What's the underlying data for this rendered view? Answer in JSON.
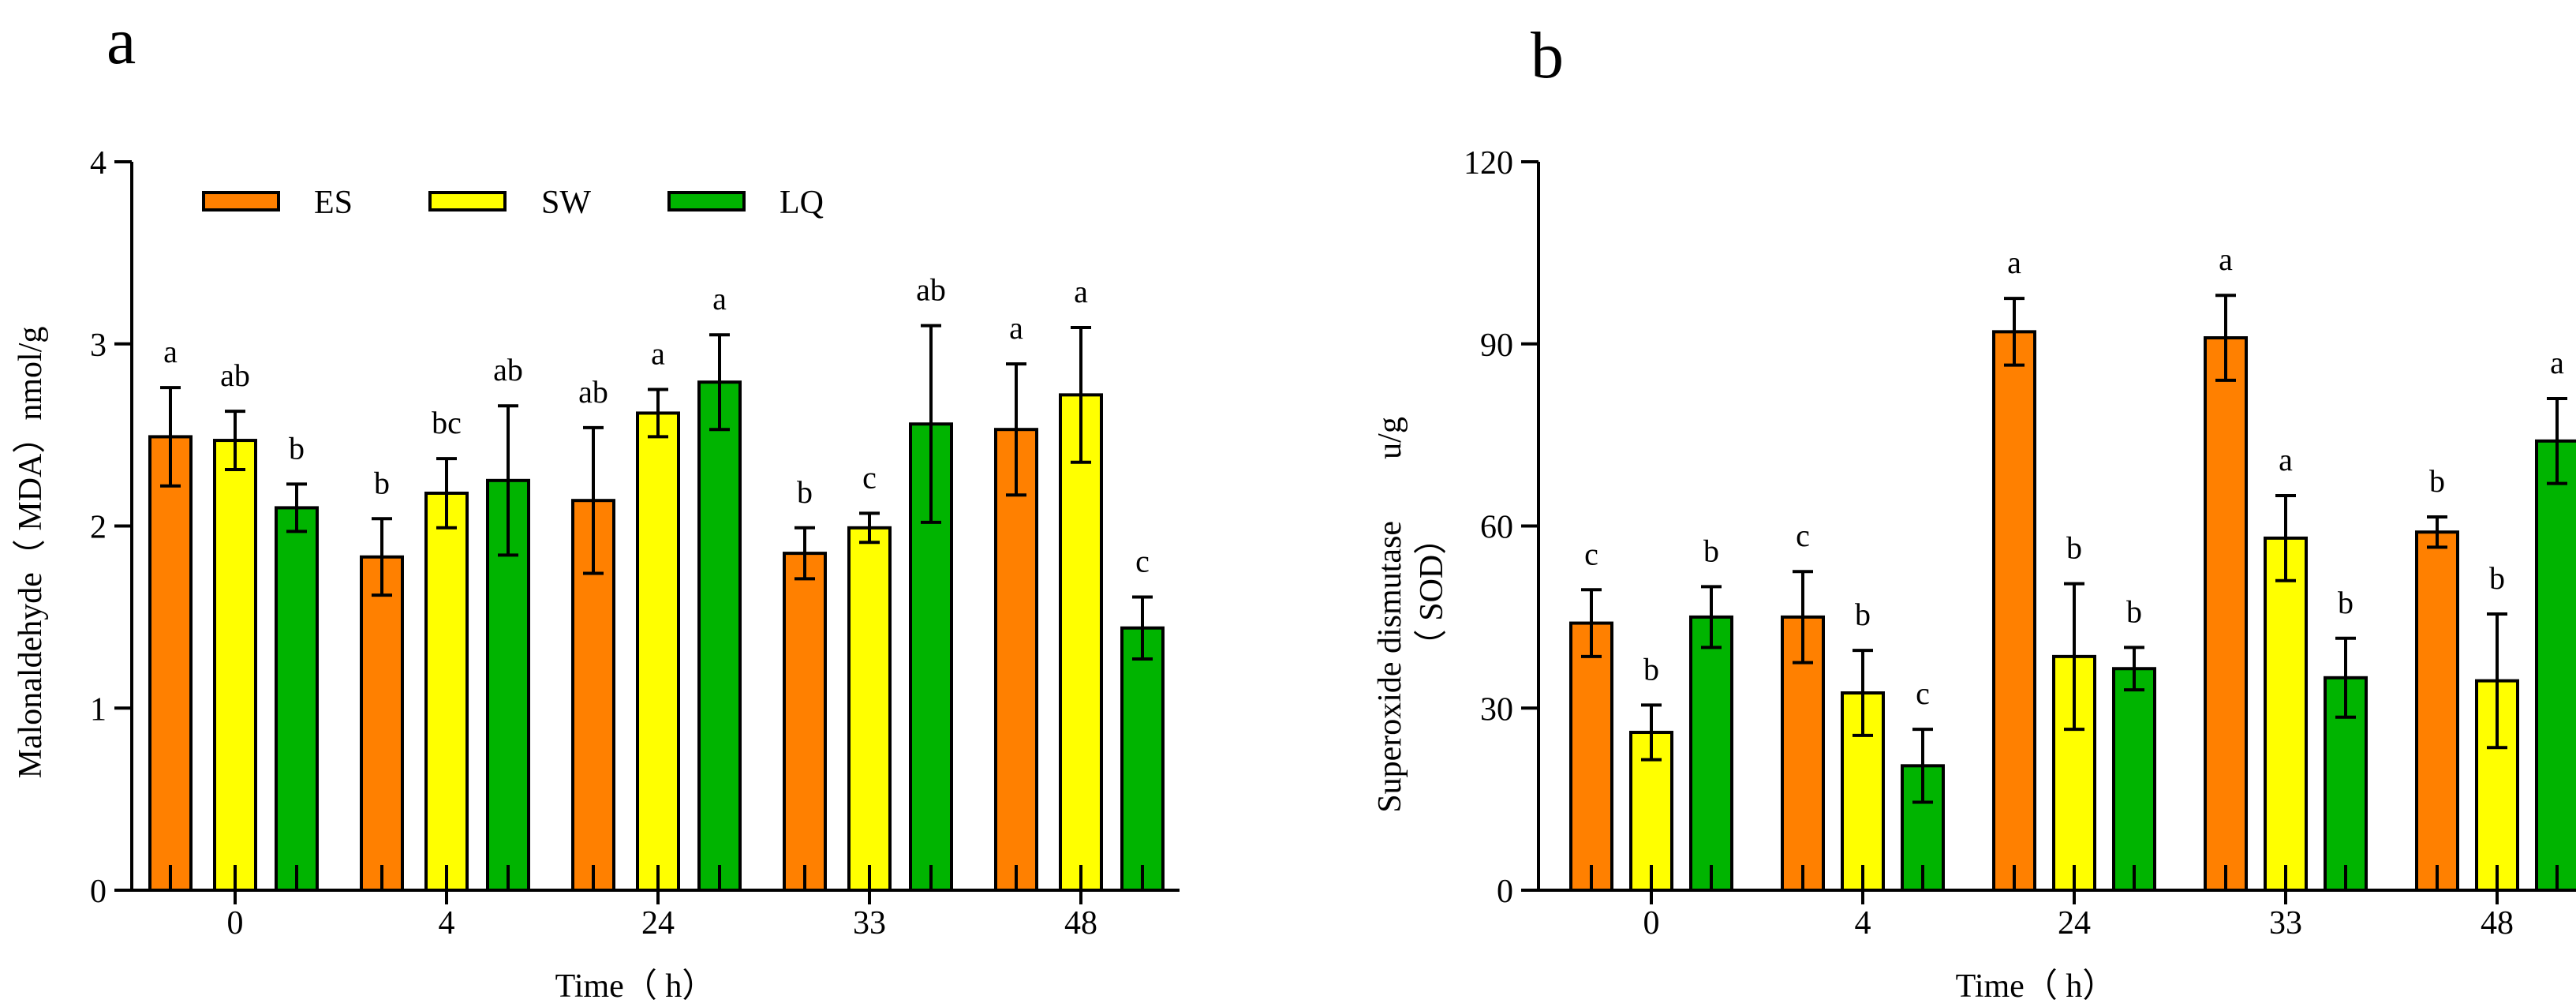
{
  "chart_data": [
    {
      "type": "bar",
      "panel_label": "a",
      "categories": [
        "0",
        "4",
        "24",
        "33",
        "48"
      ],
      "xlabel": "Time（ h）",
      "ylabel": "Malonaldehyde（ MDA）nmol/g",
      "ylim": [
        0,
        4
      ],
      "yticks": [
        "0",
        "1",
        "2",
        "3",
        "4"
      ],
      "legend": {
        "position": "top-left",
        "entries": [
          "ES",
          "SW",
          "LQ"
        ]
      },
      "colors": [
        "#ff8000",
        "#ffff00",
        "#00b400"
      ],
      "series": [
        {
          "name": "ES",
          "values": [
            2.49,
            1.83,
            2.14,
            1.85,
            2.53
          ],
          "errors": [
            0.27,
            0.21,
            0.4,
            0.14,
            0.36
          ],
          "labels": [
            "a",
            "b",
            "ab",
            "b",
            "a"
          ]
        },
        {
          "name": "SW",
          "values": [
            2.47,
            2.18,
            2.62,
            1.99,
            2.72
          ],
          "errors": [
            0.16,
            0.19,
            0.13,
            0.08,
            0.37
          ],
          "labels": [
            "ab",
            "bc",
            "a",
            "c",
            "a"
          ]
        },
        {
          "name": "LQ",
          "values": [
            2.1,
            2.25,
            2.79,
            2.56,
            1.44
          ],
          "errors": [
            0.13,
            0.41,
            0.26,
            0.54,
            0.17
          ],
          "labels": [
            "b",
            "ab",
            "a",
            "ab",
            "c"
          ]
        }
      ]
    },
    {
      "type": "bar",
      "panel_label": "b",
      "categories": [
        "0",
        "4",
        "24",
        "33",
        "48"
      ],
      "xlabel": "Time（ h）",
      "ylabel_line1": "Superoxide dismutase",
      "ylabel_unit": "u/g",
      "ylabel_line2": "（ SOD）",
      "ylim": [
        0,
        120
      ],
      "yticks": [
        "0",
        "30",
        "60",
        "90",
        "120"
      ],
      "colors": [
        "#ff8000",
        "#ffff00",
        "#00b400"
      ],
      "series": [
        {
          "name": "ES",
          "values": [
            44,
            45,
            92,
            91,
            59
          ],
          "errors": [
            5.5,
            7.5,
            5.5,
            7,
            2.5
          ],
          "labels": [
            "c",
            "c",
            "a",
            "a",
            "b"
          ]
        },
        {
          "name": "SW",
          "values": [
            26,
            32.5,
            38.5,
            58,
            34.5
          ],
          "errors": [
            4.5,
            7,
            12,
            7,
            11
          ],
          "labels": [
            "b",
            "b",
            "b",
            "a",
            "b"
          ]
        },
        {
          "name": "LQ",
          "values": [
            45,
            20.5,
            36.5,
            35,
            74
          ],
          "errors": [
            5,
            6,
            3.5,
            6.5,
            7
          ],
          "labels": [
            "b",
            "c",
            "b",
            "b",
            "a"
          ]
        }
      ]
    }
  ]
}
